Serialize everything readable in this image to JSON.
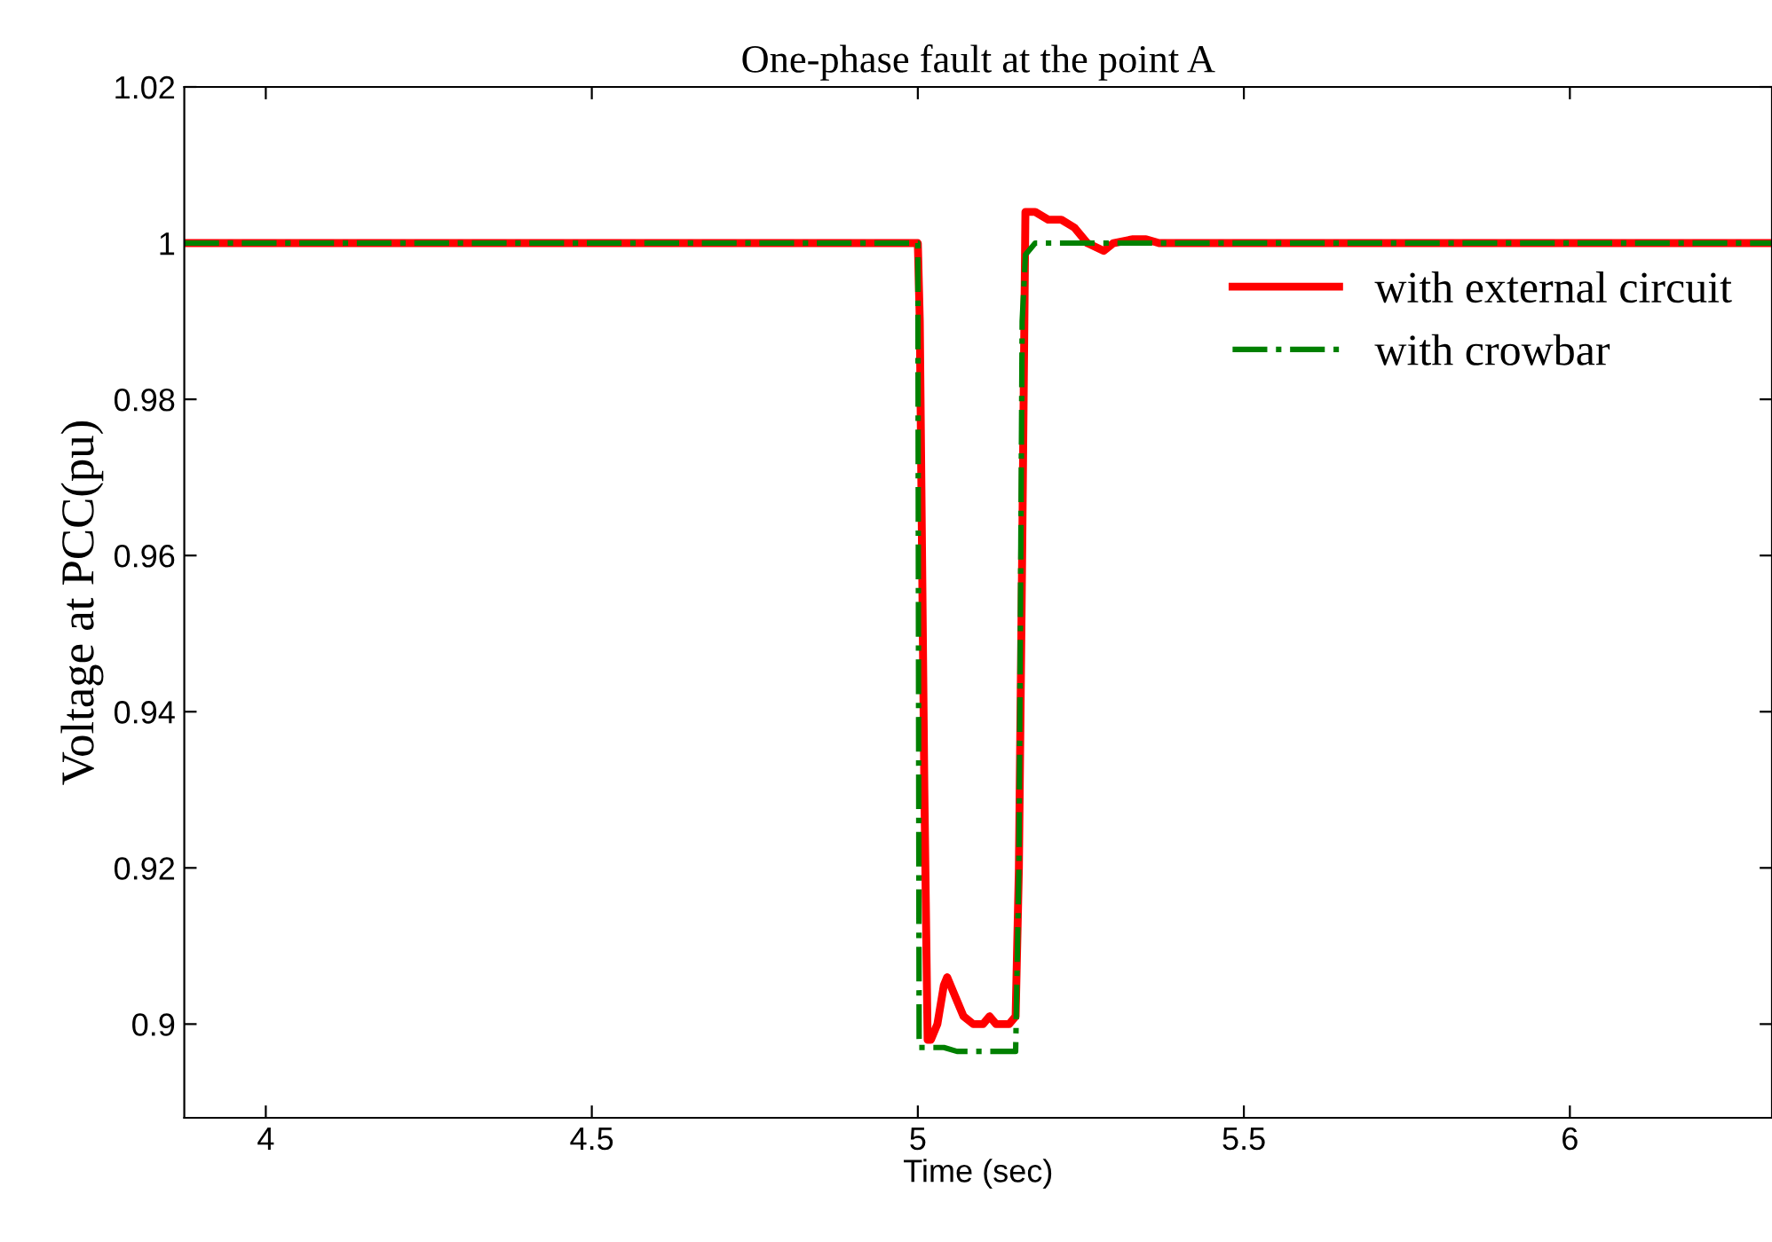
{
  "chart_data": {
    "type": "line",
    "title": "One-phase fault at the point A",
    "xlabel": "Time (sec)",
    "ylabel": "Voltage at PCC(pu)",
    "xlim": [
      3.875,
      6.31
    ],
    "xticks": [
      4,
      4.5,
      5,
      5.5,
      6
    ],
    "ylim": [
      0.888,
      1.02
    ],
    "yticks": [
      0.9,
      0.92,
      0.94,
      0.96,
      0.98,
      1,
      1.02
    ],
    "grid": false,
    "legend": "top right",
    "series": [
      {
        "name": "with external circuit",
        "color": "#ff0000",
        "line_style": "solid",
        "x": [
          3.875,
          5.0,
          5.003,
          5.01,
          5.015,
          5.02,
          5.03,
          5.04,
          5.045,
          5.06,
          5.07,
          5.085,
          5.1,
          5.11,
          5.12,
          5.14,
          5.15,
          5.155,
          5.16,
          5.165,
          5.18,
          5.2,
          5.22,
          5.24,
          5.26,
          5.285,
          5.3,
          5.33,
          5.35,
          5.37,
          6.31
        ],
        "values": [
          1.0,
          1.0,
          0.99,
          0.93,
          0.898,
          0.898,
          0.9,
          0.905,
          0.906,
          0.903,
          0.901,
          0.9,
          0.9,
          0.901,
          0.9,
          0.9,
          0.901,
          0.92,
          0.96,
          1.004,
          1.004,
          1.003,
          1.003,
          1.002,
          1.0,
          0.999,
          1.0,
          1.0005,
          1.0005,
          1.0,
          1.0
        ]
      },
      {
        "name": "with crowbar",
        "color": "#008000",
        "line_style": "dashdot",
        "x": [
          3.875,
          5.0,
          5.002,
          5.04,
          5.06,
          5.15,
          5.155,
          5.16,
          5.165,
          5.18,
          6.31
        ],
        "values": [
          1.0,
          1.0,
          0.897,
          0.897,
          0.8965,
          0.8965,
          0.92,
          0.99,
          0.9985,
          1.0,
          1.0
        ]
      }
    ]
  }
}
